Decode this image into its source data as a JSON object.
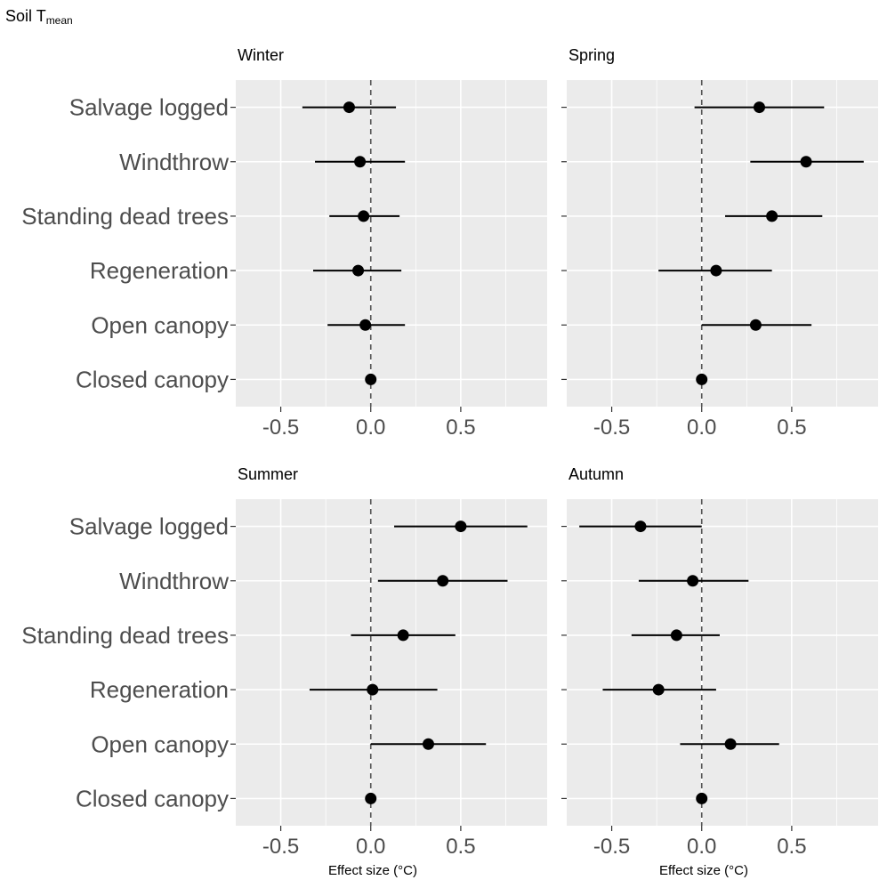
{
  "figure": {
    "title_main": "Soil T",
    "title_sub": "mean"
  },
  "colors": {
    "panel_bg": "#ebebeb",
    "grid": "#ffffff",
    "point": "#000000",
    "ref_line": "#555555"
  },
  "chart_data": [
    {
      "type": "scatter",
      "panel": "Winter",
      "title": "Winter",
      "categories": [
        "Salvage logged",
        "Windthrow",
        "Standing dead trees",
        "Regeneration",
        "Open canopy",
        "Closed canopy"
      ],
      "estimate": [
        -0.12,
        -0.06,
        -0.04,
        -0.07,
        -0.03,
        0.0
      ],
      "ci_low": [
        -0.38,
        -0.31,
        -0.23,
        -0.32,
        -0.24,
        0.0
      ],
      "ci_high": [
        0.14,
        0.19,
        0.16,
        0.17,
        0.19,
        0.0
      ],
      "x_ticks": [
        -0.5,
        0.0,
        0.5
      ],
      "x_tick_labels": [
        "-0.5",
        "0.0",
        "0.5"
      ],
      "xlim": [
        -0.75,
        0.98
      ],
      "reference_line": 0,
      "xlabel": ""
    },
    {
      "type": "scatter",
      "panel": "Spring",
      "title": "Spring",
      "categories": [
        "Salvage logged",
        "Windthrow",
        "Standing dead trees",
        "Regeneration",
        "Open canopy",
        "Closed canopy"
      ],
      "estimate": [
        0.32,
        0.58,
        0.39,
        0.08,
        0.3,
        0.0
      ],
      "ci_low": [
        -0.04,
        0.27,
        0.13,
        -0.24,
        0.0,
        0.0
      ],
      "ci_high": [
        0.68,
        0.9,
        0.67,
        0.39,
        0.61,
        0.0
      ],
      "x_ticks": [
        -0.5,
        0.0,
        0.5
      ],
      "x_tick_labels": [
        "-0.5",
        "0.0",
        "0.5"
      ],
      "xlim": [
        -0.75,
        0.98
      ],
      "reference_line": 0,
      "xlabel": ""
    },
    {
      "type": "scatter",
      "panel": "Summer",
      "title": "Summer",
      "categories": [
        "Salvage logged",
        "Windthrow",
        "Standing dead trees",
        "Regeneration",
        "Open canopy",
        "Closed canopy"
      ],
      "estimate": [
        0.5,
        0.4,
        0.18,
        0.01,
        0.32,
        0.0
      ],
      "ci_low": [
        0.13,
        0.04,
        -0.11,
        -0.34,
        0.0,
        0.0
      ],
      "ci_high": [
        0.87,
        0.76,
        0.47,
        0.37,
        0.64,
        0.0
      ],
      "x_ticks": [
        -0.5,
        0.0,
        0.5
      ],
      "x_tick_labels": [
        "-0.5",
        "0.0",
        "0.5"
      ],
      "xlim": [
        -0.75,
        0.98
      ],
      "reference_line": 0,
      "xlabel": "Effect size (°C)"
    },
    {
      "type": "scatter",
      "panel": "Autumn",
      "title": "Autumn",
      "categories": [
        "Salvage logged",
        "Windthrow",
        "Standing dead trees",
        "Regeneration",
        "Open canopy",
        "Closed canopy"
      ],
      "estimate": [
        -0.34,
        -0.05,
        -0.14,
        -0.24,
        0.16,
        0.0
      ],
      "ci_low": [
        -0.68,
        -0.35,
        -0.39,
        -0.55,
        -0.12,
        0.0
      ],
      "ci_high": [
        0.0,
        0.26,
        0.1,
        0.08,
        0.43,
        0.0
      ],
      "x_ticks": [
        -0.5,
        0.0,
        0.5
      ],
      "x_tick_labels": [
        "-0.5",
        "0.0",
        "0.5"
      ],
      "xlim": [
        -0.75,
        0.98
      ],
      "reference_line": 0,
      "xlabel": "Effect size (°C)"
    }
  ]
}
